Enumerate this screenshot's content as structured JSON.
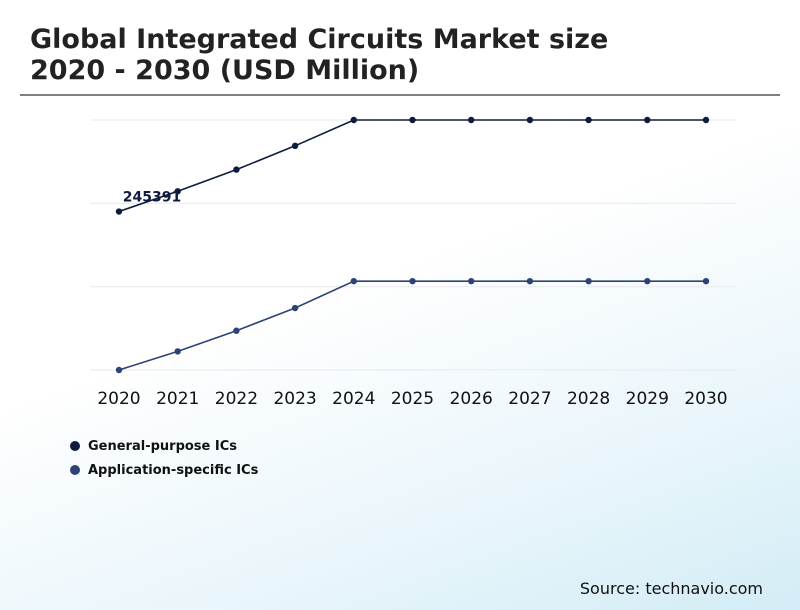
{
  "header": {
    "title_line1": "Global Integrated Circuits Market size",
    "title_line2": "2020 - 2030 (USD Million)"
  },
  "legend": {
    "items": [
      {
        "label": "General-purpose ICs",
        "color": "#0d1b3e"
      },
      {
        "label": "Application-specific ICs",
        "color": "#2f4275"
      }
    ]
  },
  "footer": {
    "source": "Source: technavio.com"
  },
  "chart_data": {
    "type": "line",
    "title": "Global Integrated Circuits Market size 2020 - 2030 (USD Million)",
    "x": [
      "2020",
      "2021",
      "2022",
      "2023",
      "2024",
      "2025",
      "2026",
      "2027",
      "2028",
      "2029",
      "2030"
    ],
    "series": [
      {
        "name": "General-purpose ICs",
        "color": "#0d1b3e",
        "values": [
          245391,
          265000,
          286000,
          309000,
          334000,
          334000,
          334000,
          334000,
          334000,
          334000,
          334000
        ]
      },
      {
        "name": "Application-specific ICs",
        "color": "#2f4275",
        "values": [
          92000,
          110000,
          130000,
          152000,
          178000,
          178000,
          178000,
          178000,
          178000,
          178000,
          178000
        ]
      }
    ],
    "data_labels": [
      {
        "series": 0,
        "index": 0,
        "text": "245391"
      }
    ],
    "ylim": [
      92000,
      334000
    ],
    "y_axis_labels": "hidden",
    "grid": "horizontal",
    "legend_position": "bottom-left"
  }
}
